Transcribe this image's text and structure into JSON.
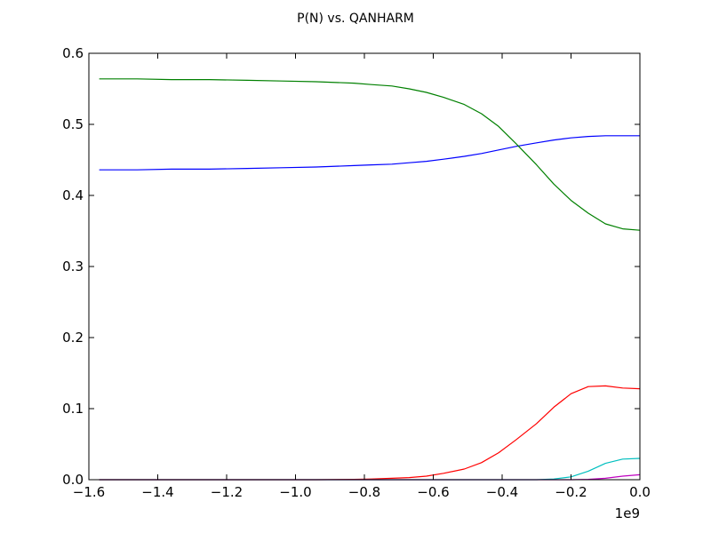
{
  "chart_data": {
    "type": "line",
    "title": "P(N) vs. QANHARM",
    "xlabel": "",
    "ylabel": "",
    "xlim": [
      -1.6,
      0.0
    ],
    "ylim": [
      0.0,
      0.6
    ],
    "x_offset_label": "1e9",
    "x_ticks": [
      -1.6,
      -1.4,
      -1.2,
      -1.0,
      -0.8,
      -0.6,
      -0.4,
      -0.2,
      0.0
    ],
    "x_tick_labels": [
      "−1.6",
      "−1.4",
      "−1.2",
      "−1.0",
      "−0.8",
      "−0.6",
      "−0.4",
      "−0.2",
      "0.0"
    ],
    "y_ticks": [
      0.0,
      0.1,
      0.2,
      0.3,
      0.4,
      0.5,
      0.6
    ],
    "y_tick_labels": [
      "0.0",
      "0.1",
      "0.2",
      "0.3",
      "0.4",
      "0.5",
      "0.6"
    ],
    "grid": false,
    "x": [
      -1.57,
      -1.46,
      -1.36,
      -1.25,
      -1.14,
      -1.04,
      -0.94,
      -0.83,
      -0.78,
      -0.72,
      -0.67,
      -0.62,
      -0.57,
      -0.51,
      -0.46,
      -0.41,
      -0.36,
      -0.3,
      -0.25,
      -0.2,
      -0.15,
      -0.1,
      -0.05,
      0.0
    ],
    "series": [
      {
        "color": "#0000ff",
        "values": [
          0.436,
          0.436,
          0.437,
          0.437,
          0.438,
          0.439,
          0.44,
          0.442,
          0.443,
          0.444,
          0.446,
          0.448,
          0.451,
          0.455,
          0.459,
          0.464,
          0.469,
          0.474,
          0.478,
          0.481,
          0.483,
          0.484,
          0.484,
          0.484
        ]
      },
      {
        "color": "#008000",
        "values": [
          0.564,
          0.564,
          0.563,
          0.563,
          0.562,
          0.561,
          0.56,
          0.558,
          0.556,
          0.554,
          0.55,
          0.545,
          0.538,
          0.528,
          0.515,
          0.497,
          0.473,
          0.443,
          0.416,
          0.393,
          0.375,
          0.36,
          0.353,
          0.351
        ]
      },
      {
        "color": "#ff0000",
        "values": [
          0.0,
          0.0,
          0.0,
          0.0,
          0.0,
          0.0,
          0.0,
          0.0005,
          0.001,
          0.002,
          0.003,
          0.005,
          0.009,
          0.015,
          0.024,
          0.038,
          0.056,
          0.079,
          0.102,
          0.121,
          0.131,
          0.132,
          0.129,
          0.128
        ]
      },
      {
        "color": "#00bfbf",
        "values": [
          0.0,
          0.0,
          0.0,
          0.0,
          0.0,
          0.0,
          0.0,
          0.0,
          0.0,
          0.0,
          0.0,
          0.0,
          0.0,
          0.0,
          0.0,
          0.0,
          0.0,
          0.0,
          0.001,
          0.004,
          0.012,
          0.023,
          0.029,
          0.03
        ]
      },
      {
        "color": "#bf00bf",
        "values": [
          0.0,
          0.0,
          0.0,
          0.0,
          0.0,
          0.0,
          0.0,
          0.0,
          0.0,
          0.0,
          0.0,
          0.0,
          0.0,
          0.0,
          0.0,
          0.0,
          0.0,
          0.0,
          0.0,
          0.0,
          0.0005,
          0.002,
          0.005,
          0.007
        ]
      }
    ]
  }
}
